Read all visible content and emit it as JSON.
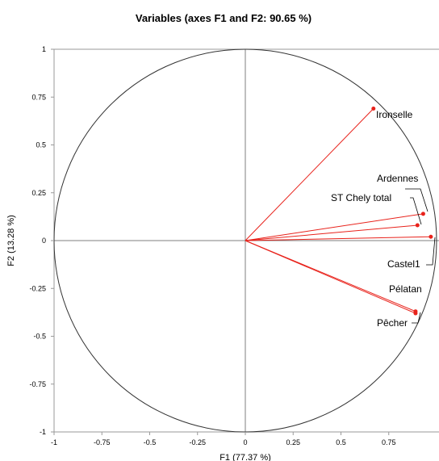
{
  "chart_data": {
    "type": "scatter",
    "title": "Variables (axes F1 and F2: 90.65 %)",
    "xlabel": "F1 (77.37 %)",
    "ylabel": "F2 (13.28 %)",
    "xlim": [
      -1,
      1
    ],
    "ylim": [
      -1,
      1
    ],
    "x_ticks": [
      "-1",
      "-0.75",
      "-0.5",
      "-0.25",
      "0",
      "0.25",
      "0.5",
      "0.75"
    ],
    "y_ticks": [
      "1",
      "0.75",
      "0.5",
      "0.25",
      "0",
      "-0.25",
      "-0.5",
      "-0.75",
      "-1"
    ],
    "unit_circle": true,
    "colors": {
      "vector": "#e8221b",
      "circle": "#333333",
      "axis": "#7f7f7f",
      "frame": "#999999"
    },
    "points": [
      {
        "label": "Ironselle",
        "x": 0.67,
        "y": 0.69
      },
      {
        "label": "Ardennes",
        "x": 0.93,
        "y": 0.14
      },
      {
        "label": "ST Chely total",
        "x": 0.9,
        "y": 0.08
      },
      {
        "label": "Castel1",
        "x": 0.97,
        "y": 0.02
      },
      {
        "label": "Pélatan",
        "x": 0.89,
        "y": -0.37
      },
      {
        "label": "Pêcher",
        "x": 0.89,
        "y": -0.38
      }
    ]
  }
}
